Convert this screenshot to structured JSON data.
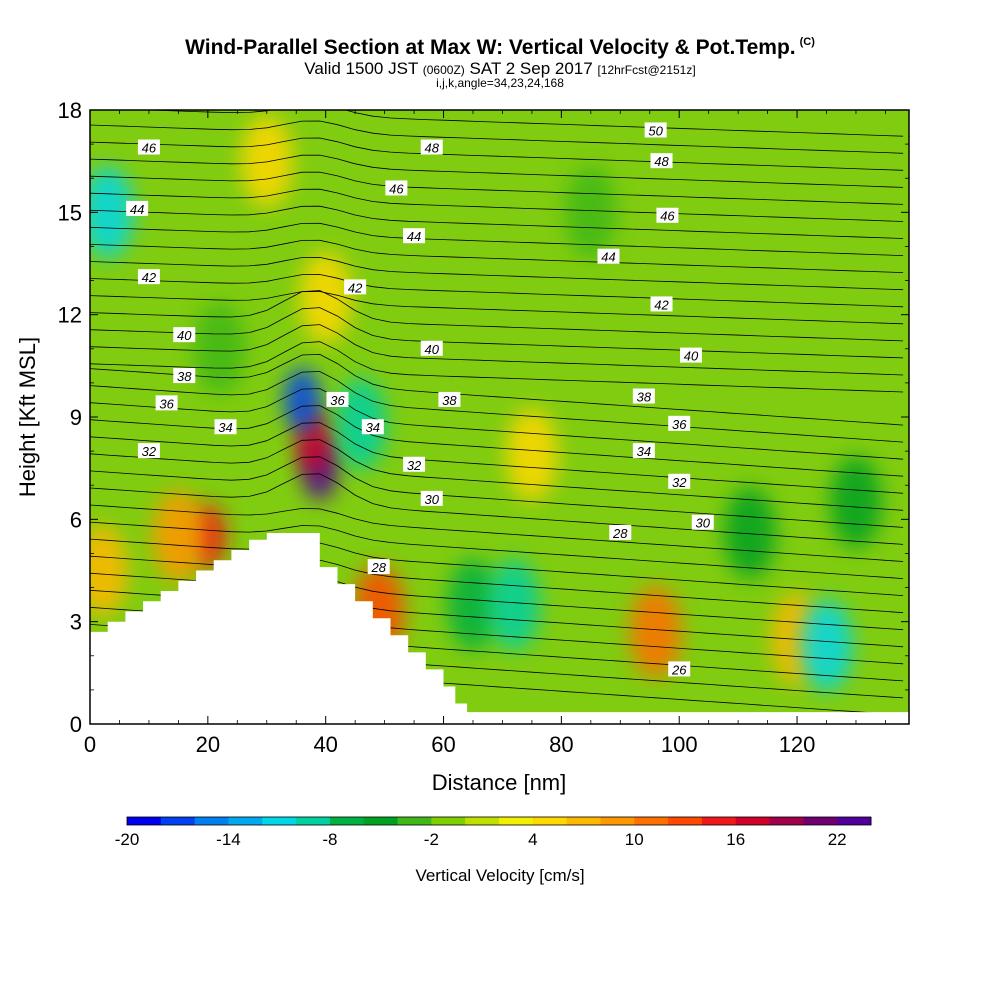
{
  "title": {
    "main": "Wind-Parallel Section at Max W: Vertical Velocity & Pot.Temp.",
    "copyright_mark": "(C)",
    "valid_prefix": "Valid 1500 JST",
    "valid_zulu": "(0600Z)",
    "valid_date": "SAT 2 Sep 2017",
    "forecast_tag": "[12hrFcst@2151z]",
    "grid_info": "i,j,k,angle=34,23,24,168"
  },
  "chart_data": {
    "type": "heatmap",
    "xlabel": "Distance [nm]",
    "ylabel": "Height [Kft MSL]",
    "xlim": [
      0,
      139
    ],
    "ylim": [
      0,
      18
    ],
    "x_ticks": [
      0,
      20,
      40,
      60,
      80,
      100,
      120
    ],
    "x_tick_labels": [
      "0",
      "20",
      "40",
      "60",
      "80",
      "100",
      "120"
    ],
    "y_ticks": [
      0,
      3,
      6,
      9,
      12,
      15,
      18
    ],
    "y_tick_labels": [
      "0",
      "3",
      "6",
      "9",
      "12",
      "15",
      "18"
    ],
    "colorbar": {
      "label": "Vertical Velocity [cm/s]",
      "min": -20,
      "max": 24,
      "step": 2,
      "tick_values": [
        -20,
        -14,
        -8,
        -2,
        4,
        10,
        16,
        22
      ],
      "tick_labels": [
        "-20",
        "-14",
        "-8",
        "-2",
        "4",
        "10",
        "16",
        "22"
      ],
      "colors": [
        "#0000f0",
        "#0040f0",
        "#0080f0",
        "#00a8f0",
        "#00d8e8",
        "#00d0a0",
        "#00b040",
        "#00a020",
        "#40b818",
        "#80d000",
        "#c0e000",
        "#f0f000",
        "#ffd800",
        "#ffb800",
        "#ff9800",
        "#ff7000",
        "#ff4800",
        "#f01818",
        "#d0002a",
        "#a0004a",
        "#700070",
        "#50009a"
      ]
    },
    "terrain": [
      [
        0,
        2.7
      ],
      [
        3,
        2.7
      ],
      [
        3,
        3.0
      ],
      [
        6,
        3.0
      ],
      [
        6,
        3.3
      ],
      [
        9,
        3.3
      ],
      [
        9,
        3.6
      ],
      [
        12,
        3.6
      ],
      [
        12,
        3.9
      ],
      [
        15,
        3.9
      ],
      [
        15,
        4.2
      ],
      [
        18,
        4.2
      ],
      [
        18,
        4.5
      ],
      [
        21,
        4.5
      ],
      [
        21,
        4.8
      ],
      [
        24,
        4.8
      ],
      [
        24,
        5.1
      ],
      [
        27,
        5.1
      ],
      [
        27,
        5.4
      ],
      [
        30,
        5.4
      ],
      [
        30,
        5.6
      ],
      [
        39,
        5.6
      ],
      [
        39,
        4.6
      ],
      [
        42,
        4.6
      ],
      [
        42,
        4.1
      ],
      [
        45,
        4.1
      ],
      [
        45,
        3.6
      ],
      [
        48,
        3.6
      ],
      [
        48,
        3.1
      ],
      [
        51,
        3.1
      ],
      [
        51,
        2.6
      ],
      [
        54,
        2.6
      ],
      [
        54,
        2.1
      ],
      [
        57,
        2.1
      ],
      [
        57,
        1.6
      ],
      [
        60,
        1.6
      ],
      [
        60,
        1.1
      ],
      [
        62,
        1.1
      ],
      [
        62,
        0.6
      ],
      [
        64,
        0.6
      ],
      [
        64,
        0.35
      ],
      [
        139,
        0.35
      ]
    ],
    "velocity_features": [
      {
        "x": 39,
        "y": 7.5,
        "value": 24
      },
      {
        "x": 38,
        "y": 8.3,
        "value": 16
      },
      {
        "x": 20,
        "y": 5.5,
        "value": 14
      },
      {
        "x": 15,
        "y": 5.5,
        "value": 8
      },
      {
        "x": 49,
        "y": 3.3,
        "value": 12
      },
      {
        "x": 96,
        "y": 2.7,
        "value": 10
      },
      {
        "x": 75,
        "y": 7.9,
        "value": 4
      },
      {
        "x": 120,
        "y": 2.5,
        "value": 6
      },
      {
        "x": 2,
        "y": 4.5,
        "value": 6
      },
      {
        "x": 30,
        "y": 16.5,
        "value": 4
      },
      {
        "x": 40,
        "y": 12.5,
        "value": 4
      },
      {
        "x": 36,
        "y": 9.5,
        "value": -18
      },
      {
        "x": 46,
        "y": 8.8,
        "value": -10
      },
      {
        "x": 3,
        "y": 15.0,
        "value": -12
      },
      {
        "x": 125,
        "y": 2.3,
        "value": -12
      },
      {
        "x": 65,
        "y": 3.5,
        "value": -8
      },
      {
        "x": 72,
        "y": 3.5,
        "value": -10
      },
      {
        "x": 112,
        "y": 5.6,
        "value": -6
      },
      {
        "x": 85,
        "y": 15,
        "value": -4
      },
      {
        "x": 22,
        "y": 11,
        "value": -4
      },
      {
        "x": 130,
        "y": 6.5,
        "value": -6
      }
    ],
    "theta_labels": [
      {
        "text": "46",
        "x": 10,
        "y": 16.9
      },
      {
        "text": "44",
        "x": 8,
        "y": 15.1
      },
      {
        "text": "42",
        "x": 10,
        "y": 13.1
      },
      {
        "text": "40",
        "x": 16,
        "y": 11.4
      },
      {
        "text": "38",
        "x": 16,
        "y": 10.2
      },
      {
        "text": "36",
        "x": 13,
        "y": 9.4
      },
      {
        "text": "34",
        "x": 23,
        "y": 8.7
      },
      {
        "text": "32",
        "x": 10,
        "y": 8.0
      },
      {
        "text": "48",
        "x": 58,
        "y": 16.9
      },
      {
        "text": "46",
        "x": 52,
        "y": 15.7
      },
      {
        "text": "44",
        "x": 55,
        "y": 14.3
      },
      {
        "text": "42",
        "x": 45,
        "y": 12.8
      },
      {
        "text": "40",
        "x": 58,
        "y": 11.0
      },
      {
        "text": "38",
        "x": 61,
        "y": 9.5
      },
      {
        "text": "36",
        "x": 42,
        "y": 9.5
      },
      {
        "text": "34",
        "x": 48,
        "y": 8.7
      },
      {
        "text": "32",
        "x": 55,
        "y": 7.6
      },
      {
        "text": "30",
        "x": 58,
        "y": 6.6
      },
      {
        "text": "28",
        "x": 49,
        "y": 4.6
      },
      {
        "text": "50",
        "x": 96,
        "y": 17.4
      },
      {
        "text": "48",
        "x": 97,
        "y": 16.5
      },
      {
        "text": "46",
        "x": 98,
        "y": 14.9
      },
      {
        "text": "44",
        "x": 88,
        "y": 13.7
      },
      {
        "text": "42",
        "x": 97,
        "y": 12.3
      },
      {
        "text": "40",
        "x": 102,
        "y": 10.8
      },
      {
        "text": "38",
        "x": 94,
        "y": 9.6
      },
      {
        "text": "36",
        "x": 100,
        "y": 8.8
      },
      {
        "text": "34",
        "x": 94,
        "y": 8.0
      },
      {
        "text": "32",
        "x": 100,
        "y": 7.1
      },
      {
        "text": "30",
        "x": 104,
        "y": 5.9
      },
      {
        "text": "28",
        "x": 90,
        "y": 5.6
      },
      {
        "text": "26",
        "x": 100,
        "y": 1.6
      }
    ]
  }
}
